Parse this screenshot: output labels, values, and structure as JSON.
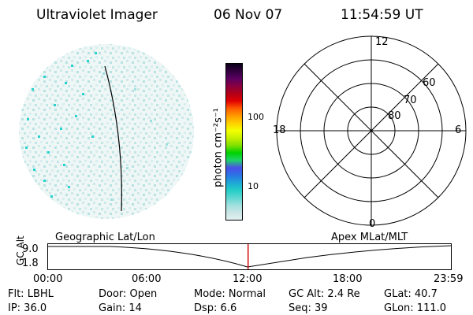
{
  "header": {
    "instrument": "Ultraviolet Imager",
    "date": "06 Nov 07",
    "time": "11:54:59 UT"
  },
  "colorbar": {
    "unit_label": "photon cm⁻²s⁻¹",
    "ticks": [
      {
        "label": "100",
        "value": 100
      },
      {
        "label": "10",
        "value": 10
      }
    ],
    "colors": [
      "#e3f1f1",
      "#c9e5e5",
      "#9fe0df",
      "#5ad6d0",
      "#23cdc7",
      "#1ea6d6",
      "#2b73e6",
      "#4a4fe8",
      "#1fd36a",
      "#00d200",
      "#7fe000",
      "#c8ef00",
      "#f2ff00",
      "#ffd000",
      "#ff9a00",
      "#ff5a00",
      "#e00000",
      "#b00018",
      "#8a0040",
      "#5a0060",
      "#32003f",
      "#0a0018"
    ]
  },
  "polar_plot": {
    "mlt_labels": {
      "top": "12",
      "right": "6",
      "bottom": "0",
      "left": "18"
    },
    "lat_labels": [
      "60",
      "70",
      "80"
    ]
  },
  "timeline": {
    "left_title": "Geographic Lat/Lon",
    "right_title": "Apex MLat/MLT",
    "y_axis_label": "GC Alt",
    "y_ticks": [
      "9.0",
      "1.8"
    ],
    "x_ticks": [
      "00:00",
      "06:00",
      "12:00",
      "18:00",
      "23:59"
    ],
    "current_time_fraction": 0.4965,
    "current_marker_color": "#cc0000"
  },
  "status": {
    "flt": "Flt: LBHL",
    "door": "Door: Open",
    "mode": "Mode: Normal",
    "gc_alt": "GC Alt: 2.4 Re",
    "glat": "GLat:  40.7",
    "ip": "IP: 36.0",
    "gain": "Gain: 14",
    "dsp": "Dsp:     6.6",
    "seq": "Seq: 39",
    "glon": "GLon: 111.0"
  }
}
